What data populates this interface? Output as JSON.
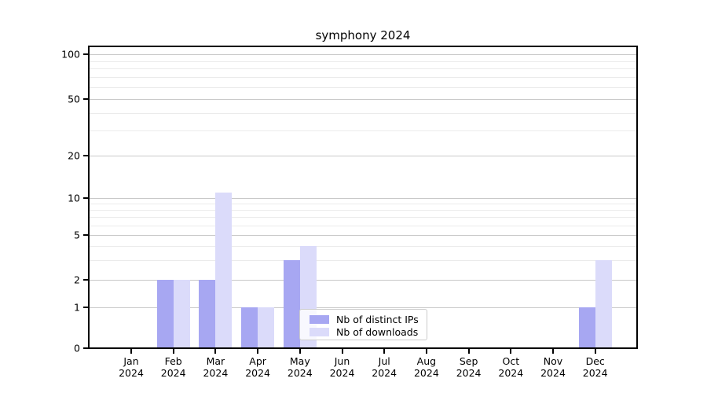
{
  "chart_data": {
    "type": "bar",
    "title": "symphony 2024",
    "categories": [
      "Jan 2024",
      "Feb 2024",
      "Mar 2024",
      "Apr 2024",
      "May 2024",
      "Jun 2024",
      "Jul 2024",
      "Aug 2024",
      "Sep 2024",
      "Oct 2024",
      "Nov 2024",
      "Dec 2024"
    ],
    "series": [
      {
        "name": "Nb of distinct IPs",
        "color": "#a7a7f2",
        "values": [
          0,
          2,
          2,
          1,
          3,
          0,
          0,
          0,
          0,
          0,
          0,
          1
        ]
      },
      {
        "name": "Nb of downloads",
        "color": "#dbdbfa",
        "values": [
          0,
          2,
          11,
          1,
          4,
          0,
          0,
          0,
          0,
          0,
          0,
          3
        ]
      }
    ],
    "yscale": "symlog",
    "ylim": [
      0,
      100
    ],
    "y_tick_values": [
      0,
      1,
      2,
      5,
      10,
      20,
      50,
      100
    ],
    "y_tick_labels": [
      "0",
      "1",
      "2",
      "5",
      "10",
      "20",
      "50",
      "100"
    ],
    "y_minor_gridlines": [
      3,
      4,
      6,
      7,
      8,
      9,
      30,
      40,
      60,
      70,
      80,
      90
    ],
    "grid": "on",
    "legend_position": "lower center"
  }
}
